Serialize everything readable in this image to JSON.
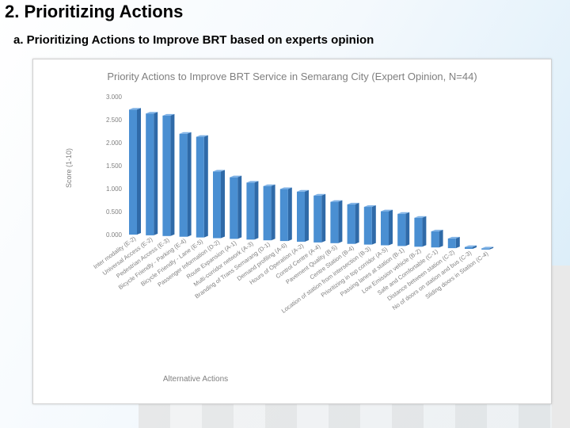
{
  "slide": {
    "title": "2. Prioritizing Actions",
    "subtitle": "a. Prioritizing Actions to Improve BRT based on experts opinion"
  },
  "colors": {
    "bar_front": "#4a8fd2",
    "bar_side": "#2f6aa8",
    "bar_top": "#7fb2e6",
    "axis_text": "#7f7f7f",
    "title_text": "#7f7f7f"
  },
  "chart_data": {
    "type": "bar",
    "title": "Priority Actions to Improve BRT Service in Semarang City (Expert Opinion, N=44)",
    "xlabel": "Alternative Actions",
    "ylabel": "Score (1-10)",
    "ylim": [
      0,
      3
    ],
    "yticks": [
      "0.000",
      "0.500",
      "1.000",
      "1.500",
      "2.000",
      "2.500",
      "3.000"
    ],
    "grid": false,
    "categories": [
      "Inter modality (E-2)",
      "Universal Access (E-2)",
      "Pedestrian Access (E-3)",
      "Bicycle Friendly - Parking (E-4)",
      "Bicycle Friendly - Lane (E-5)",
      "Passenger Information (D-2)",
      "Route Expansion (A-1)",
      "Multi-corridor network (A-3)",
      "Branding of Trans Semarang (D-1)",
      "Demand profiling (A-6)",
      "Hours of Operation (A-2)",
      "Control Centre (A-4)",
      "Pavement Quality (B-5)",
      "Centre Station (B-4)",
      "Location of station from intersection (B-3)",
      "Prioritizing in top corridor (A-5)",
      "Passing lanes at station (B-1)",
      "Low Emission vehicle (B-2)",
      "Safe and Comfortable (C-1)",
      "Distance between station (C-2)",
      "No of doors on station and bus (C-3)",
      "Sliding doors in Station (C-4)"
    ],
    "values": [
      2.72,
      2.65,
      2.62,
      2.24,
      2.19,
      1.45,
      1.34,
      1.24,
      1.18,
      1.13,
      1.09,
      1.02,
      0.9,
      0.86,
      0.82,
      0.74,
      0.7,
      0.63,
      0.35,
      0.21,
      0.04,
      0.0
    ]
  }
}
